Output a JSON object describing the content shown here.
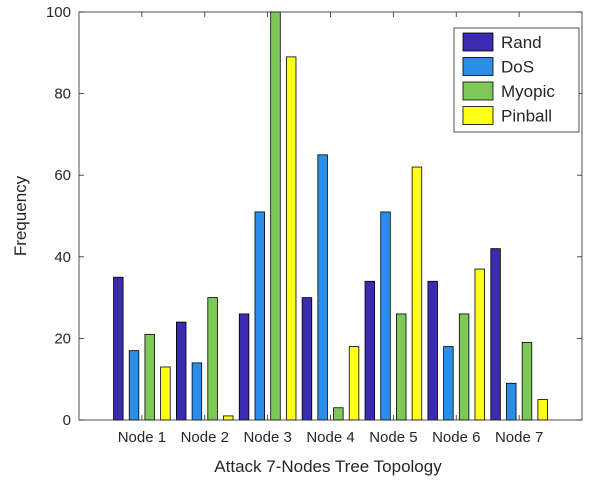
{
  "chart_data": {
    "type": "bar",
    "xlabel": "Attack 7-Nodes Tree Topology",
    "ylabel": "Frequency",
    "ylim": [
      0,
      100
    ],
    "yticks": [
      0,
      20,
      40,
      60,
      80,
      100
    ],
    "categories": [
      "Node 1",
      "Node 2",
      "Node 3",
      "Node 4",
      "Node 5",
      "Node 6",
      "Node 7"
    ],
    "series": [
      {
        "name": "Rand",
        "color": "#3a2bb1",
        "values": [
          35,
          24,
          26,
          30,
          34,
          34,
          42
        ]
      },
      {
        "name": "DoS",
        "color": "#2a8ee8",
        "values": [
          17,
          14,
          51,
          65,
          51,
          18,
          9
        ]
      },
      {
        "name": "Myopic",
        "color": "#7ec85a",
        "values": [
          21,
          30,
          100,
          3,
          26,
          26,
          19
        ]
      },
      {
        "name": "Pinball",
        "color": "#ffff1a",
        "values": [
          13,
          1,
          89,
          18,
          62,
          37,
          5
        ]
      }
    ],
    "legend_position": "top-right",
    "grid": false
  }
}
